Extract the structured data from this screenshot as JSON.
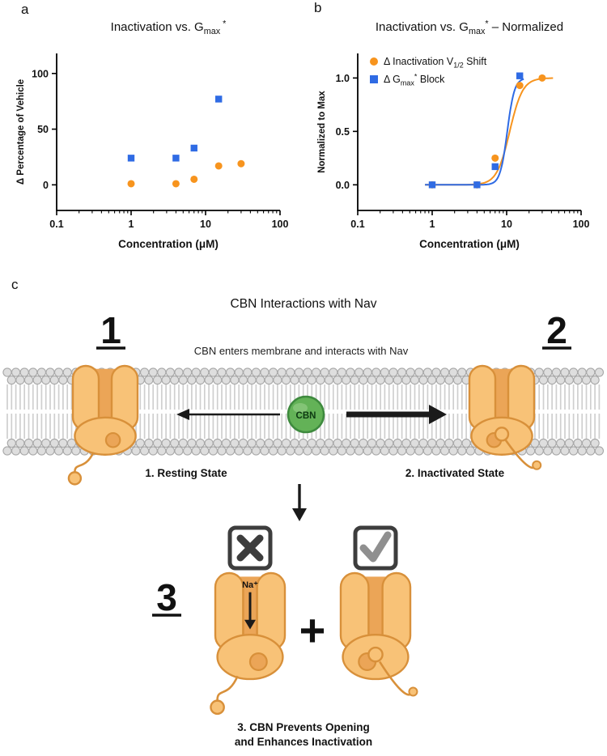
{
  "figure": {
    "panel_labels": {
      "a": "a",
      "b": "b",
      "c": "c"
    }
  },
  "chart_data": [
    {
      "type": "scatter",
      "title_parts": [
        {
          "t": "Inactivation vs. G"
        },
        {
          "t": "max",
          "s": "sub"
        },
        {
          "t": " *",
          "s": "sup"
        }
      ],
      "xlabel": "Concentration (μM)",
      "ylabel": "Δ Percentage of Vehicle",
      "xscale": "log",
      "xlim": [
        0.1,
        100
      ],
      "xticks": [
        0.1,
        1,
        10,
        100
      ],
      "xtick_labels": [
        "0.1",
        "1",
        "10",
        "100"
      ],
      "ylim": [
        -23,
        118
      ],
      "yticks": [
        0,
        50,
        100
      ],
      "ytick_labels": [
        "0",
        "50",
        "100"
      ],
      "legend": false,
      "series": [
        {
          "name_parts": [
            {
              "t": "Δ Inactivation V"
            },
            {
              "t": "1/2",
              "s": "sub"
            },
            {
              "t": " Shift"
            }
          ],
          "color": "#F7941E",
          "marker": "circle",
          "x": [
            1,
            4,
            7,
            15,
            30
          ],
          "y": [
            1,
            1,
            5,
            17,
            19
          ]
        },
        {
          "name_parts": [
            {
              "t": "Δ G"
            },
            {
              "t": "max",
              "s": "sub"
            },
            {
              "t": "*",
              "s": "sup"
            },
            {
              "t": " Block"
            }
          ],
          "color": "#2F6BE4",
          "marker": "square",
          "x": [
            1,
            4,
            7,
            15
          ],
          "y": [
            24,
            24,
            33,
            77
          ]
        }
      ]
    },
    {
      "type": "scatter",
      "title_parts": [
        {
          "t": "Inactivation vs. G"
        },
        {
          "t": "max",
          "s": "sub"
        },
        {
          "t": "*",
          "s": "sup"
        },
        {
          "t": " – Normalized"
        }
      ],
      "xlabel": "Concentration (μM)",
      "ylabel": "Normalized to Max",
      "xscale": "log",
      "xlim": [
        0.1,
        100
      ],
      "xticks": [
        0.1,
        1,
        10,
        100
      ],
      "xtick_labels": [
        "0.1",
        "1",
        "10",
        "100"
      ],
      "ylim": [
        -0.24,
        1.23
      ],
      "yticks": [
        0,
        0.5,
        1
      ],
      "ytick_labels": [
        "0.0",
        "0.5",
        "1.0"
      ],
      "legend": true,
      "series": [
        {
          "name_parts": [
            {
              "t": "Δ Inactivation V"
            },
            {
              "t": "1/2",
              "s": "sub"
            },
            {
              "t": " Shift"
            }
          ],
          "color": "#F7941E",
          "marker": "circle",
          "x": [
            1,
            4,
            7,
            15,
            30
          ],
          "y": [
            0,
            0,
            0.25,
            0.93,
            1.0
          ],
          "fit": {
            "ec50": 11,
            "hill": 5,
            "xmin": 0.8,
            "xmax": 42
          }
        },
        {
          "name_parts": [
            {
              "t": "Δ G"
            },
            {
              "t": "max",
              "s": "sub"
            },
            {
              "t": "*",
              "s": "sup"
            },
            {
              "t": " Block"
            }
          ],
          "color": "#2F6BE4",
          "marker": "square",
          "x": [
            1,
            4,
            7,
            15
          ],
          "y": [
            0,
            0,
            0.17,
            1.02
          ],
          "fit": {
            "ec50": 10.2,
            "hill": 9,
            "xmin": 0.8,
            "xmax": 17
          }
        }
      ]
    }
  ],
  "diagram": {
    "title": "CBN Interactions with Nav",
    "steps": {
      "one": "1",
      "two": "2",
      "three": "3"
    },
    "membrane_caption": "CBN enters membrane and interacts with Nav",
    "cbn_label": "CBN",
    "resting_label": "1.  Resting State",
    "inactivated_label": "2.   Inactivated State",
    "na_label": "Na⁺",
    "plus_sign": "+",
    "caption_line1": "3. CBN Prevents Opening",
    "caption_line2": "and Enhances Inactivation",
    "colors": {
      "channel_fill": "#F8C277",
      "channel_stroke": "#D8903A",
      "pore_fill": "#EBA557",
      "cbn_fill": "#63B257",
      "cbn_stroke": "#3E8A3E",
      "cbn_highlight": "#9ED48F",
      "cbn_text": "#0E3A12",
      "lipid_fill": "#DEDEDE",
      "lipid_stroke": "#A8A8A8",
      "tail": "#CFCFCF",
      "box_stroke": "#3D3D3D",
      "x_mark": "#3D3D3D",
      "check_mark": "#8F8F8F",
      "arrow": "#1A1A1A"
    }
  }
}
